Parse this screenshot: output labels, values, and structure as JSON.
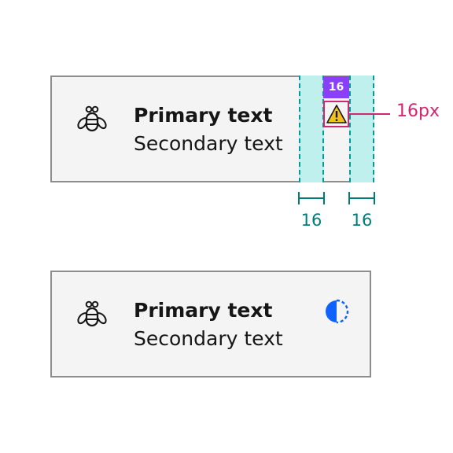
{
  "tiles": [
    {
      "primary": "Primary text",
      "secondary": "Secondary text",
      "leading_icon": "bee-icon",
      "trailing_icon": "warning-icon"
    },
    {
      "primary": "Primary text",
      "secondary": "Secondary text",
      "leading_icon": "bee-icon",
      "trailing_icon": "contrast-icon"
    }
  ],
  "annotations": {
    "icon_size_badge": "16",
    "icon_size_callout": "16px",
    "left_gap": "16",
    "right_gap": "16"
  },
  "colors": {
    "tile_bg": "#f4f4f4",
    "tile_border": "#8d8d8d",
    "spacing_fill": "#bff0ee",
    "spacing_line": "#009d9a",
    "dimension_text": "#007d79",
    "badge": "#8a3ffc",
    "callout": "#d12771",
    "warning_fill": "#f1c21b",
    "contrast_icon": "#0f62fe"
  }
}
